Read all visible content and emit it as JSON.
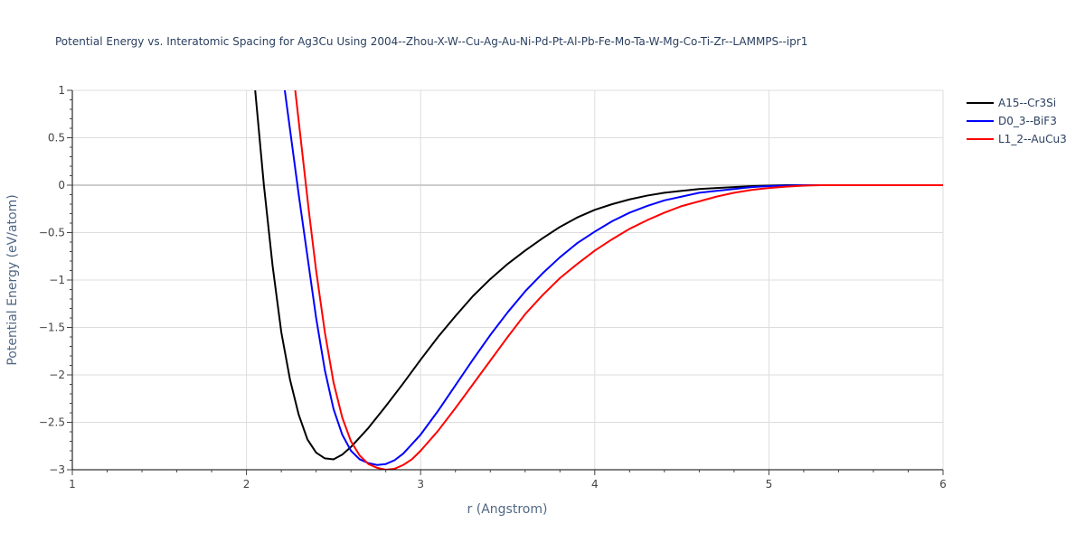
{
  "chart_data": {
    "type": "line",
    "title": "Potential Energy vs. Interatomic Spacing for Ag3Cu Using 2004--Zhou-X-W--Cu-Ag-Au-Ni-Pd-Pt-Al-Pb-Fe-Mo-Ta-W-Mg-Co-Ti-Zr--LAMMPS--ipr1",
    "xlabel": "r (Angstrom)",
    "ylabel": "Potential Energy (eV/atom)",
    "xlim": [
      1,
      6
    ],
    "ylim": [
      -3,
      1
    ],
    "xticks": [
      1,
      2,
      3,
      4,
      5,
      6
    ],
    "xtick_labels": [
      "1",
      "2",
      "3",
      "4",
      "5",
      "6"
    ],
    "yticks": [
      1,
      0.5,
      0,
      -0.5,
      -1,
      -1.5,
      -2,
      -2.5,
      -3
    ],
    "ytick_labels": [
      "1",
      "0.5",
      "0",
      "−0.5",
      "−1",
      "−1.5",
      "−2",
      "−2.5",
      "−3"
    ],
    "grid": true,
    "legend_position": "top-right outside",
    "series": [
      {
        "name": "A15--Cr3Si",
        "color": "#000000",
        "x": [
          2.05,
          2.1,
          2.15,
          2.2,
          2.25,
          2.3,
          2.35,
          2.4,
          2.45,
          2.5,
          2.55,
          2.6,
          2.65,
          2.7,
          2.8,
          2.9,
          3.0,
          3.1,
          3.2,
          3.3,
          3.4,
          3.5,
          3.6,
          3.7,
          3.8,
          3.9,
          4.0,
          4.1,
          4.2,
          4.3,
          4.4,
          4.5,
          4.6,
          4.7,
          4.8,
          4.9,
          5.0,
          5.1,
          5.2,
          5.3,
          5.4,
          5.5,
          6.0
        ],
        "y": [
          1.0,
          0.0,
          -0.85,
          -1.55,
          -2.05,
          -2.42,
          -2.68,
          -2.82,
          -2.88,
          -2.89,
          -2.84,
          -2.76,
          -2.66,
          -2.56,
          -2.33,
          -2.09,
          -1.84,
          -1.6,
          -1.38,
          -1.17,
          -0.99,
          -0.83,
          -0.69,
          -0.56,
          -0.44,
          -0.34,
          -0.26,
          -0.2,
          -0.15,
          -0.11,
          -0.08,
          -0.06,
          -0.04,
          -0.03,
          -0.02,
          -0.01,
          -0.005,
          0,
          0,
          0,
          0,
          0,
          0
        ]
      },
      {
        "name": "D0_3--BiF3",
        "color": "#0000ff",
        "x": [
          2.22,
          2.26,
          2.3,
          2.35,
          2.4,
          2.45,
          2.5,
          2.55,
          2.6,
          2.65,
          2.7,
          2.75,
          2.8,
          2.85,
          2.9,
          3.0,
          3.1,
          3.2,
          3.3,
          3.4,
          3.5,
          3.6,
          3.7,
          3.8,
          3.9,
          4.0,
          4.1,
          4.2,
          4.3,
          4.4,
          4.5,
          4.6,
          4.7,
          4.8,
          4.9,
          5.0,
          5.1,
          5.2,
          5.3,
          5.4,
          6.0
        ],
        "y": [
          1.0,
          0.45,
          -0.1,
          -0.75,
          -1.4,
          -1.95,
          -2.36,
          -2.63,
          -2.8,
          -2.89,
          -2.93,
          -2.95,
          -2.94,
          -2.9,
          -2.83,
          -2.63,
          -2.38,
          -2.11,
          -1.84,
          -1.58,
          -1.34,
          -1.12,
          -0.93,
          -0.76,
          -0.61,
          -0.49,
          -0.38,
          -0.29,
          -0.22,
          -0.16,
          -0.12,
          -0.08,
          -0.06,
          -0.04,
          -0.02,
          -0.01,
          -0.005,
          0,
          0,
          0,
          0
        ]
      },
      {
        "name": "L1_2--AuCu3",
        "color": "#ff0000",
        "x": [
          2.28,
          2.32,
          2.36,
          2.4,
          2.45,
          2.5,
          2.55,
          2.6,
          2.65,
          2.7,
          2.75,
          2.8,
          2.85,
          2.9,
          2.95,
          3.0,
          3.1,
          3.2,
          3.3,
          3.4,
          3.5,
          3.6,
          3.7,
          3.8,
          3.9,
          4.0,
          4.1,
          4.2,
          4.3,
          4.4,
          4.5,
          4.6,
          4.7,
          4.8,
          4.9,
          5.0,
          5.1,
          5.2,
          5.3,
          5.4,
          6.0
        ],
        "y": [
          1.0,
          0.35,
          -0.3,
          -0.9,
          -1.55,
          -2.08,
          -2.45,
          -2.7,
          -2.85,
          -2.94,
          -2.98,
          -3.0,
          -2.99,
          -2.95,
          -2.89,
          -2.8,
          -2.59,
          -2.35,
          -2.1,
          -1.85,
          -1.6,
          -1.36,
          -1.16,
          -0.98,
          -0.83,
          -0.69,
          -0.57,
          -0.46,
          -0.37,
          -0.29,
          -0.22,
          -0.17,
          -0.12,
          -0.08,
          -0.05,
          -0.03,
          -0.015,
          -0.005,
          0,
          0,
          0
        ]
      }
    ]
  }
}
